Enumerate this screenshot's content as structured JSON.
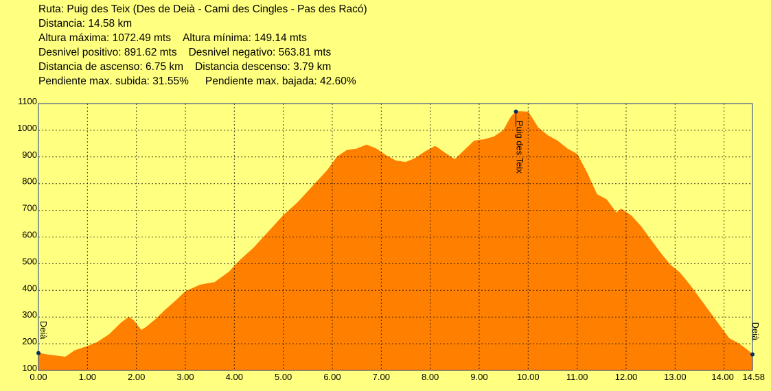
{
  "info": {
    "ruta": "Ruta: Puig des Teix (Des de Deià - Cami des Cingles - Pas des Racó)",
    "distancia": "Distancia: 14.58 km",
    "altura_max": "Altura máxima: 1072.49 mts",
    "altura_min": "Altura mínima: 149.14 mts",
    "desnivel_pos": "Desnivel positivo: 891.62 mts",
    "desnivel_neg": "Desnivel negativo: 563.81 mts",
    "dist_ascenso": "Distancia de ascenso: 6.75 km",
    "dist_descenso": "Distancia descenso: 3.79 km",
    "pend_subida": "Pendiente max. subida: 31.55%",
    "pend_bajada": "Pendiente max. bajada: 42.60%"
  },
  "colors": {
    "background": "#ffff80",
    "fill": "#ff8000",
    "grid": "#000000",
    "marker": "#003366"
  },
  "chart_data": {
    "type": "area",
    "xlim": [
      0,
      14.58
    ],
    "ylim": [
      100,
      1100
    ],
    "grid": true,
    "x_ticks": [
      "0.00",
      "1.00",
      "2.00",
      "3.00",
      "4.00",
      "5.00",
      "6.00",
      "7.00",
      "8.00",
      "9.00",
      "10.00",
      "11.00",
      "12.00",
      "13.00",
      "14.00",
      "14.58"
    ],
    "y_ticks": [
      "100",
      "200",
      "300",
      "400",
      "500",
      "600",
      "700",
      "800",
      "900",
      "1000",
      "1100"
    ],
    "x": [
      0,
      0.2,
      0.55,
      0.75,
      1.0,
      1.2,
      1.45,
      1.7,
      1.85,
      1.95,
      2.1,
      2.2,
      2.4,
      2.6,
      2.8,
      3.0,
      3.3,
      3.6,
      3.9,
      4.1,
      4.4,
      4.7,
      5.0,
      5.3,
      5.6,
      5.9,
      6.1,
      6.3,
      6.5,
      6.7,
      6.9,
      7.1,
      7.3,
      7.5,
      7.7,
      7.9,
      8.1,
      8.3,
      8.5,
      8.7,
      8.9,
      9.1,
      9.3,
      9.5,
      9.65,
      9.75,
      9.85,
      10.0,
      10.2,
      10.4,
      10.6,
      10.8,
      11.0,
      11.2,
      11.4,
      11.6,
      11.8,
      11.9,
      12.1,
      12.3,
      12.5,
      12.7,
      12.9,
      13.1,
      13.3,
      13.5,
      13.7,
      13.9,
      14.1,
      14.3,
      14.45,
      14.58
    ],
    "y": [
      165,
      158,
      150,
      175,
      190,
      205,
      235,
      280,
      300,
      285,
      250,
      262,
      292,
      328,
      360,
      395,
      420,
      430,
      470,
      510,
      560,
      620,
      680,
      730,
      790,
      850,
      900,
      925,
      930,
      945,
      930,
      905,
      885,
      880,
      895,
      920,
      940,
      915,
      890,
      925,
      960,
      965,
      975,
      1000,
      1050,
      1070,
      1070,
      1068,
      1010,
      980,
      960,
      930,
      910,
      840,
      760,
      740,
      690,
      705,
      680,
      640,
      590,
      540,
      495,
      465,
      420,
      370,
      320,
      270,
      220,
      200,
      180,
      160
    ],
    "markers": [
      {
        "x": 0,
        "y": 165,
        "label": "Deià"
      },
      {
        "x": 9.75,
        "y": 1070,
        "label": "Puig des Teix"
      },
      {
        "x": 14.58,
        "y": 160,
        "label": "Deià"
      }
    ]
  }
}
